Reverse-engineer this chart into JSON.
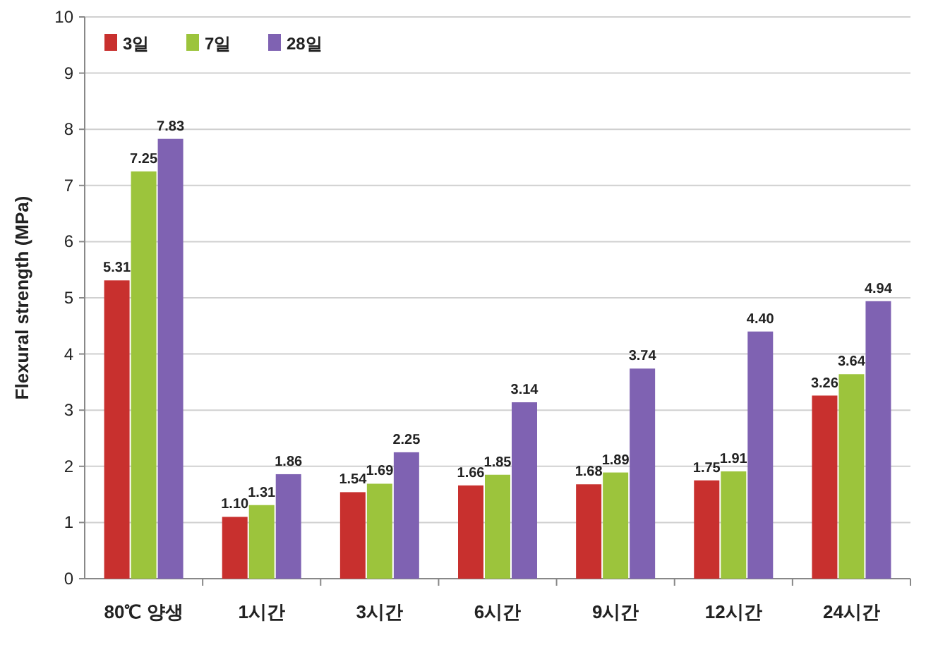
{
  "chart_data": {
    "type": "bar",
    "ylabel": "Flexural strength (MPa)",
    "categories": [
      "80℃ 양생",
      "1시간",
      "3시간",
      "6시간",
      "9시간",
      "12시간",
      "24시간"
    ],
    "series": [
      {
        "name": "3일",
        "color": "#c8302e",
        "values": [
          5.31,
          1.1,
          1.54,
          1.66,
          1.68,
          1.75,
          3.26
        ],
        "value_labels": [
          "5.31",
          "1.10",
          "1.54",
          "1.66",
          "1.68",
          "1.75",
          "3.26"
        ]
      },
      {
        "name": "7일",
        "color": "#9cc43c",
        "values": [
          7.25,
          1.31,
          1.69,
          1.85,
          1.89,
          1.91,
          3.64
        ],
        "value_labels": [
          "7.25",
          "1.31",
          "1.69",
          "1.85",
          "1.89",
          "1.91",
          "3.64"
        ]
      },
      {
        "name": "28일",
        "color": "#7f62b2",
        "values": [
          7.83,
          1.86,
          2.25,
          3.14,
          3.74,
          4.4,
          4.94
        ],
        "value_labels": [
          "7.83",
          "1.86",
          "2.25",
          "3.14",
          "3.74",
          "4.40",
          "4.94"
        ]
      }
    ],
    "ylim": [
      0,
      10
    ],
    "yticks": [
      0,
      1,
      2,
      3,
      4,
      5,
      6,
      7,
      8,
      9,
      10
    ],
    "grid": "y",
    "legend": "top left"
  }
}
